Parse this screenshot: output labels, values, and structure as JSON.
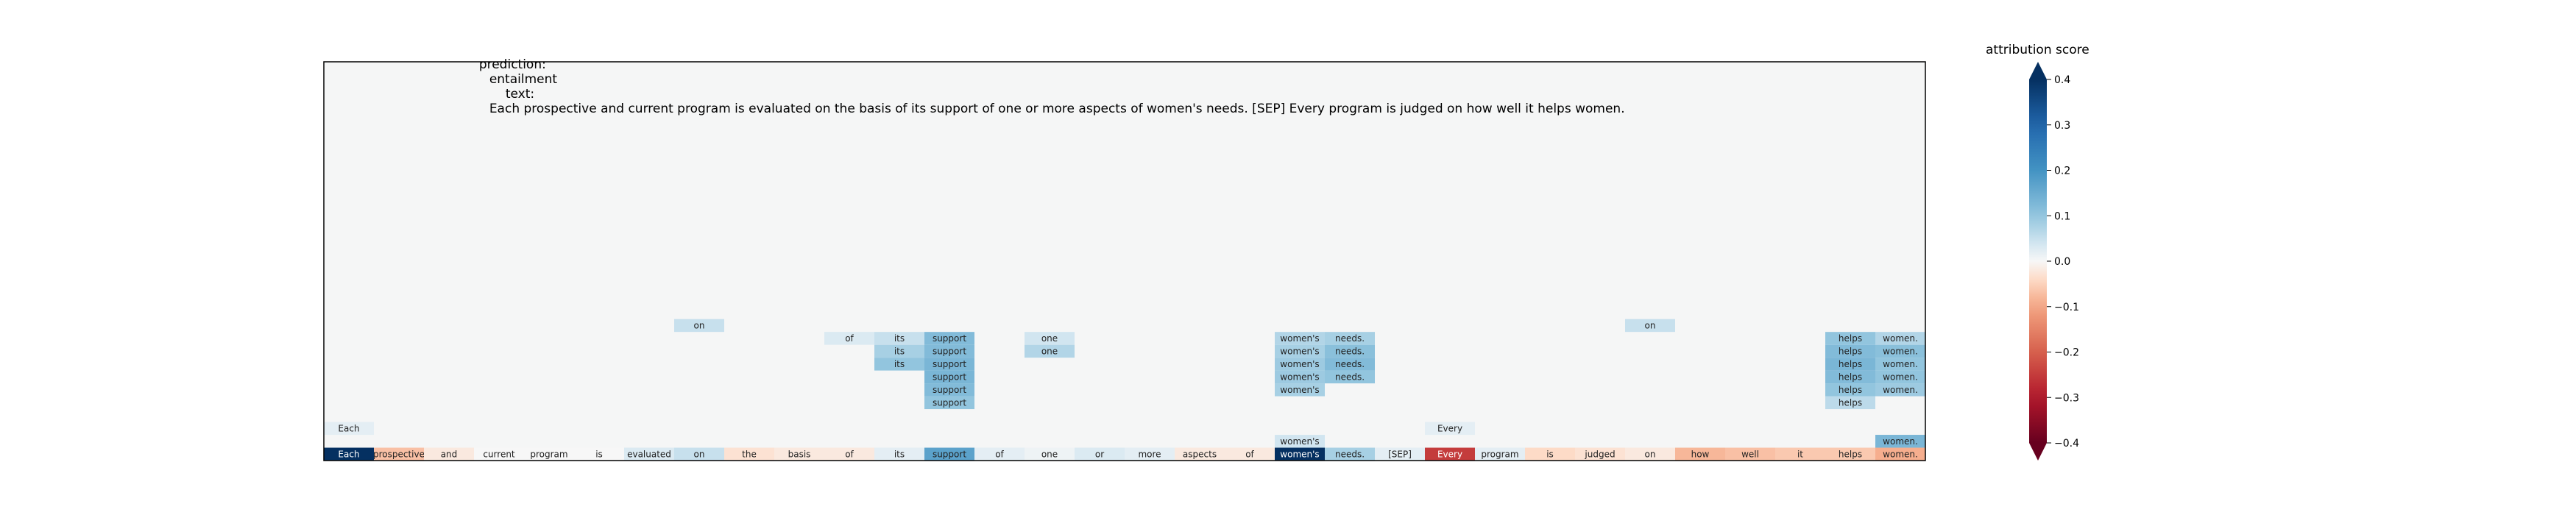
{
  "header": {
    "prediction_label": "prediction:",
    "prediction_value": "entailment",
    "text_label": "text:",
    "text_value": "Each prospective and current program is evaluated on the basis of its support of one or more aspects of women's needs. [SEP] Every program is judged on how well it helps women."
  },
  "chart_data": {
    "type": "heatmap",
    "title": "",
    "xlabel": "",
    "ylabel": "",
    "tokens": [
      "Each",
      "prospective",
      "and",
      "current",
      "program",
      "is",
      "evaluated",
      "on",
      "the",
      "basis",
      "of",
      "its",
      "support",
      "of",
      "one",
      "or",
      "more",
      "aspects",
      "of",
      "women's",
      "needs.",
      "[SEP]",
      "Every",
      "program",
      "is",
      "judged",
      "on",
      "how",
      "well",
      "it",
      "helps",
      "women."
    ],
    "bottom_scores": [
      0.43,
      -0.07,
      -0.02,
      0.0,
      0.0,
      0.0,
      0.03,
      0.05,
      -0.03,
      -0.02,
      -0.02,
      0.02,
      0.17,
      0.02,
      0.01,
      0.03,
      0.02,
      -0.02,
      -0.02,
      0.42,
      0.08,
      0.02,
      -0.25,
      0.02,
      -0.04,
      -0.03,
      -0.02,
      -0.08,
      -0.07,
      -0.06,
      -0.06,
      -0.09
    ],
    "cells": [
      {
        "row": 1,
        "col": 19,
        "label": "women's",
        "score": 0.04
      },
      {
        "row": 1,
        "col": 31,
        "label": "women.",
        "score": 0.13
      },
      {
        "row": 2,
        "col": 0,
        "label": "Each",
        "score": 0.02
      },
      {
        "row": 2,
        "col": 22,
        "label": "Every",
        "score": 0.02
      },
      {
        "row": 4,
        "col": 12,
        "label": "support",
        "score": 0.1
      },
      {
        "row": 4,
        "col": 30,
        "label": "helps",
        "score": 0.06
      },
      {
        "row": 5,
        "col": 12,
        "label": "support",
        "score": 0.12
      },
      {
        "row": 5,
        "col": 19,
        "label": "women's",
        "score": 0.08
      },
      {
        "row": 5,
        "col": 30,
        "label": "helps",
        "score": 0.1
      },
      {
        "row": 5,
        "col": 31,
        "label": "women.",
        "score": 0.09
      },
      {
        "row": 6,
        "col": 12,
        "label": "support",
        "score": 0.13
      },
      {
        "row": 6,
        "col": 19,
        "label": "women's",
        "score": 0.09
      },
      {
        "row": 6,
        "col": 20,
        "label": "needs.",
        "score": 0.1
      },
      {
        "row": 6,
        "col": 30,
        "label": "helps",
        "score": 0.12
      },
      {
        "row": 6,
        "col": 31,
        "label": "women.",
        "score": 0.1
      },
      {
        "row": 7,
        "col": 11,
        "label": "its",
        "score": 0.1
      },
      {
        "row": 7,
        "col": 12,
        "label": "support",
        "score": 0.13
      },
      {
        "row": 7,
        "col": 19,
        "label": "women's",
        "score": 0.09
      },
      {
        "row": 7,
        "col": 20,
        "label": "needs.",
        "score": 0.12
      },
      {
        "row": 7,
        "col": 30,
        "label": "helps",
        "score": 0.13
      },
      {
        "row": 7,
        "col": 31,
        "label": "women.",
        "score": 0.1
      },
      {
        "row": 8,
        "col": 11,
        "label": "its",
        "score": 0.08
      },
      {
        "row": 8,
        "col": 12,
        "label": "support",
        "score": 0.12
      },
      {
        "row": 8,
        "col": 14,
        "label": "one",
        "score": 0.07
      },
      {
        "row": 8,
        "col": 19,
        "label": "women's",
        "score": 0.08
      },
      {
        "row": 8,
        "col": 20,
        "label": "needs.",
        "score": 0.11
      },
      {
        "row": 8,
        "col": 30,
        "label": "helps",
        "score": 0.12
      },
      {
        "row": 8,
        "col": 31,
        "label": "women.",
        "score": 0.11
      },
      {
        "row": 9,
        "col": 10,
        "label": "of",
        "score": 0.03
      },
      {
        "row": 9,
        "col": 11,
        "label": "its",
        "score": 0.05
      },
      {
        "row": 9,
        "col": 12,
        "label": "support",
        "score": 0.12
      },
      {
        "row": 9,
        "col": 14,
        "label": "one",
        "score": 0.04
      },
      {
        "row": 9,
        "col": 19,
        "label": "women's",
        "score": 0.07
      },
      {
        "row": 9,
        "col": 20,
        "label": "needs.",
        "score": 0.08
      },
      {
        "row": 9,
        "col": 30,
        "label": "helps",
        "score": 0.1
      },
      {
        "row": 9,
        "col": 31,
        "label": "women.",
        "score": 0.07
      },
      {
        "row": 10,
        "col": 7,
        "label": "on",
        "score": 0.05
      },
      {
        "row": 10,
        "col": 26,
        "label": "on",
        "score": 0.05
      }
    ],
    "rows": 31,
    "colorbar": {
      "title": "attribution score",
      "min": -0.4,
      "max": 0.4,
      "ticks": [
        "0.4",
        "0.3",
        "0.2",
        "0.1",
        "0.0",
        "−0.1",
        "−0.2",
        "−0.3",
        "−0.4"
      ],
      "tick_values": [
        0.4,
        0.3,
        0.2,
        0.1,
        0.0,
        -0.1,
        -0.2,
        -0.3,
        -0.4
      ],
      "colormap": "RdBu",
      "extend": "both"
    },
    "background_color": "#f5f6f6"
  }
}
